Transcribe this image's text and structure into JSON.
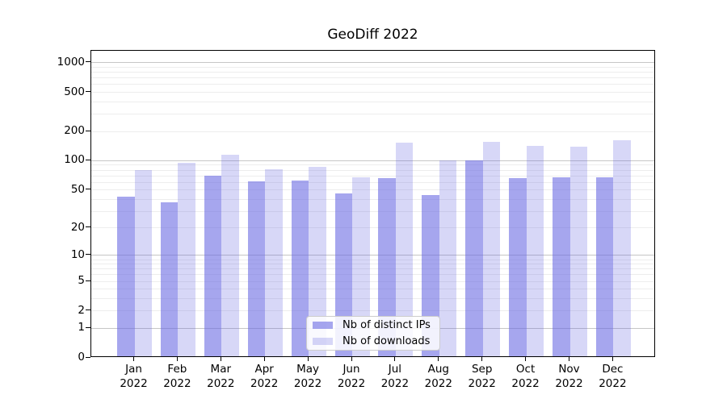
{
  "figure": {
    "title": "GeoDiff 2022"
  },
  "legend": {
    "items": [
      {
        "label": "Nb of distinct IPs",
        "series_key": "ips"
      },
      {
        "label": "Nb of downloads",
        "series_key": "downloads"
      }
    ]
  },
  "colors": {
    "bar_distinct_ips": "rgba(102,102,226,0.58)",
    "bar_downloads": "rgba(102,102,226,0.26)",
    "bar_distinct_ips_hex": "#a6a6f1",
    "bar_downloads_hex": "#d8d8f7",
    "grid_major": "#c6c6c6",
    "grid_minor": "#ededed",
    "axis": "#000000"
  },
  "chart_data": {
    "type": "bar",
    "title": "GeoDiff 2022",
    "categories": [
      "Jan 2022",
      "Feb 2022",
      "Mar 2022",
      "Apr 2022",
      "May 2022",
      "Jun 2022",
      "Jul 2022",
      "Aug 2022",
      "Sep 2022",
      "Oct 2022",
      "Nov 2022",
      "Dec 2022"
    ],
    "series": [
      {
        "name": "Nb of distinct IPs",
        "values": [
          41,
          36,
          67,
          59,
          60,
          44,
          64,
          43,
          98,
          64,
          65,
          65
        ]
      },
      {
        "name": "Nb of downloads",
        "values": [
          77,
          91,
          112,
          79,
          83,
          65,
          148,
          97,
          151,
          136,
          134,
          156
        ]
      }
    ],
    "xlabel": "",
    "ylabel": "",
    "yscale": "log1p (symlog-like: position proportional to log10(value+1))",
    "yticks": [
      0,
      1,
      2,
      5,
      10,
      20,
      50,
      100,
      200,
      500,
      1000
    ],
    "minor_gridlines": [
      2,
      3,
      4,
      5,
      6,
      7,
      8,
      9,
      20,
      30,
      40,
      50,
      60,
      70,
      80,
      90,
      200,
      300,
      400,
      500,
      600,
      700,
      800,
      900
    ],
    "major_gridlines": [
      1,
      10,
      100,
      1000
    ],
    "ylim": [
      0,
      1330
    ],
    "grid": true,
    "legend_position": "lower center"
  }
}
